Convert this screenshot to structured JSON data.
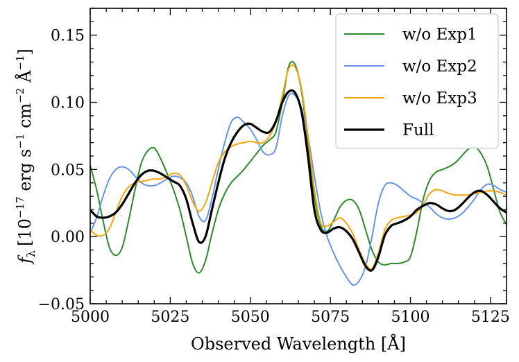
{
  "chart_data": {
    "type": "line",
    "title": "",
    "xlabel": "Observed Wavelength [Å]",
    "ylabel_main": "f",
    "ylabel_sub": "λ",
    "ylabel_units": "[10",
    "ylabel_exp1": "−17",
    "ylabel_erg": " erg s",
    "ylabel_exp2": "−1",
    "ylabel_cm": " cm",
    "ylabel_exp3": "−2",
    "ylabel_ang": " Å",
    "ylabel_exp4": "−1",
    "ylabel_close": "]",
    "xlim": [
      5000,
      5130
    ],
    "ylim": [
      -0.05,
      0.17
    ],
    "xticks": [
      5000,
      5025,
      5050,
      5075,
      5100,
      5125
    ],
    "xtick_labels": [
      "5000",
      "5025",
      "5050",
      "5075",
      "5100",
      "5125"
    ],
    "yticks": [
      -0.05,
      0.0,
      0.05,
      0.1,
      0.15
    ],
    "ytick_labels": [
      "−0.05",
      "0.00",
      "0.05",
      "0.10",
      "0.15"
    ],
    "legend_position": "top-right",
    "series": [
      {
        "name": "w/o Exp1",
        "color": "#2a8a2a",
        "width": 2,
        "x": [
          5000,
          5002,
          5004,
          5006,
          5008,
          5010,
          5012,
          5014,
          5016,
          5018,
          5020,
          5022,
          5024,
          5026,
          5028,
          5030,
          5032,
          5034,
          5036,
          5038,
          5040,
          5042,
          5044,
          5046,
          5048,
          5050,
          5052,
          5054,
          5056,
          5058,
          5060,
          5062,
          5064,
          5066,
          5068,
          5070,
          5072,
          5074,
          5076,
          5078,
          5080,
          5082,
          5084,
          5086,
          5088,
          5090,
          5092,
          5094,
          5096,
          5098,
          5100,
          5102,
          5104,
          5106,
          5108,
          5110,
          5112,
          5114,
          5116,
          5118,
          5120,
          5122,
          5124,
          5126,
          5128,
          5130
        ],
        "y": [
          0.053,
          0.035,
          0.012,
          -0.008,
          -0.014,
          -0.008,
          0.012,
          0.035,
          0.055,
          0.064,
          0.066,
          0.058,
          0.047,
          0.035,
          0.02,
          0.0,
          -0.02,
          -0.027,
          -0.018,
          0.002,
          0.02,
          0.032,
          0.04,
          0.045,
          0.05,
          0.056,
          0.062,
          0.068,
          0.072,
          0.078,
          0.1,
          0.127,
          0.128,
          0.108,
          0.07,
          0.03,
          0.008,
          0.004,
          0.012,
          0.022,
          0.027,
          0.027,
          0.02,
          0.005,
          -0.01,
          -0.019,
          -0.021,
          -0.02,
          -0.02,
          -0.019,
          -0.015,
          0.004,
          0.028,
          0.042,
          0.048,
          0.05,
          0.052,
          0.055,
          0.06,
          0.065,
          0.067,
          0.062,
          0.052,
          0.035,
          0.018,
          0.009
        ]
      },
      {
        "name": "w/o Exp2",
        "color": "#6495ed",
        "width": 2,
        "x": [
          5000,
          5002,
          5004,
          5006,
          5008,
          5010,
          5012,
          5014,
          5016,
          5018,
          5020,
          5022,
          5024,
          5026,
          5028,
          5030,
          5032,
          5034,
          5036,
          5038,
          5040,
          5042,
          5044,
          5046,
          5048,
          5050,
          5052,
          5054,
          5056,
          5058,
          5060,
          5062,
          5064,
          5066,
          5068,
          5070,
          5072,
          5074,
          5076,
          5078,
          5080,
          5082,
          5084,
          5086,
          5088,
          5090,
          5092,
          5094,
          5096,
          5098,
          5100,
          5102,
          5104,
          5106,
          5108,
          5110,
          5112,
          5114,
          5116,
          5118,
          5120,
          5122,
          5124,
          5126,
          5128,
          5130
        ],
        "y": [
          0.003,
          0.014,
          0.03,
          0.043,
          0.05,
          0.052,
          0.05,
          0.045,
          0.04,
          0.038,
          0.038,
          0.04,
          0.043,
          0.045,
          0.044,
          0.04,
          0.03,
          0.015,
          0.012,
          0.028,
          0.05,
          0.07,
          0.085,
          0.089,
          0.085,
          0.08,
          0.072,
          0.063,
          0.061,
          0.066,
          0.09,
          0.105,
          0.105,
          0.095,
          0.075,
          0.045,
          0.018,
          0.0,
          -0.012,
          -0.022,
          -0.03,
          -0.036,
          -0.033,
          -0.022,
          0.0,
          0.025,
          0.038,
          0.04,
          0.038,
          0.034,
          0.03,
          0.028,
          0.025,
          0.022,
          0.017,
          0.014,
          0.013,
          0.014,
          0.017,
          0.022,
          0.028,
          0.035,
          0.039,
          0.038,
          0.035,
          0.033
        ]
      },
      {
        "name": "w/o Exp3",
        "color": "#f5a40a",
        "width": 2,
        "x": [
          5000,
          5002,
          5004,
          5006,
          5008,
          5010,
          5012,
          5014,
          5016,
          5018,
          5020,
          5022,
          5024,
          5026,
          5028,
          5030,
          5032,
          5034,
          5036,
          5038,
          5040,
          5042,
          5044,
          5046,
          5048,
          5050,
          5052,
          5054,
          5056,
          5058,
          5060,
          5062,
          5064,
          5066,
          5068,
          5070,
          5072,
          5074,
          5076,
          5078,
          5080,
          5082,
          5084,
          5086,
          5088,
          5090,
          5092,
          5094,
          5096,
          5098,
          5100,
          5102,
          5104,
          5106,
          5108,
          5110,
          5112,
          5114,
          5116,
          5118,
          5120,
          5122,
          5124,
          5126,
          5128,
          5130
        ],
        "y": [
          0.005,
          0.001,
          0.001,
          0.006,
          0.018,
          0.03,
          0.037,
          0.04,
          0.041,
          0.042,
          0.043,
          0.043,
          0.045,
          0.047,
          0.046,
          0.038,
          0.026,
          0.019,
          0.025,
          0.04,
          0.055,
          0.063,
          0.067,
          0.069,
          0.07,
          0.071,
          0.07,
          0.07,
          0.075,
          0.085,
          0.105,
          0.125,
          0.126,
          0.11,
          0.075,
          0.035,
          0.01,
          0.008,
          0.011,
          0.014,
          0.01,
          0.002,
          -0.01,
          -0.02,
          -0.024,
          -0.012,
          0.005,
          0.012,
          0.014,
          0.015,
          0.016,
          0.018,
          0.024,
          0.032,
          0.035,
          0.034,
          0.032,
          0.031,
          0.031,
          0.031,
          0.032,
          0.033,
          0.034,
          0.034,
          0.033,
          0.031
        ]
      },
      {
        "name": "Full",
        "color": "#000000",
        "width": 3.2,
        "x": [
          5000,
          5002,
          5004,
          5006,
          5008,
          5010,
          5012,
          5014,
          5016,
          5018,
          5020,
          5022,
          5024,
          5026,
          5028,
          5030,
          5032,
          5034,
          5036,
          5038,
          5040,
          5042,
          5044,
          5046,
          5048,
          5050,
          5052,
          5054,
          5056,
          5058,
          5060,
          5062,
          5064,
          5066,
          5068,
          5070,
          5072,
          5074,
          5076,
          5078,
          5080,
          5082,
          5084,
          5086,
          5088,
          5090,
          5092,
          5094,
          5096,
          5098,
          5100,
          5102,
          5104,
          5106,
          5108,
          5110,
          5112,
          5114,
          5116,
          5118,
          5120,
          5122,
          5124,
          5126,
          5128,
          5130
        ],
        "y": [
          0.02,
          0.015,
          0.014,
          0.015,
          0.018,
          0.024,
          0.032,
          0.04,
          0.046,
          0.049,
          0.049,
          0.047,
          0.044,
          0.041,
          0.038,
          0.028,
          0.01,
          -0.004,
          0.0,
          0.02,
          0.04,
          0.058,
          0.07,
          0.078,
          0.083,
          0.084,
          0.081,
          0.078,
          0.078,
          0.086,
          0.1,
          0.108,
          0.107,
          0.093,
          0.06,
          0.02,
          0.005,
          0.003,
          0.006,
          0.007,
          0.004,
          -0.002,
          -0.012,
          -0.022,
          -0.025,
          -0.015,
          0.001,
          0.008,
          0.01,
          0.012,
          0.015,
          0.02,
          0.023,
          0.025,
          0.024,
          0.021,
          0.019,
          0.02,
          0.024,
          0.029,
          0.033,
          0.034,
          0.031,
          0.026,
          0.021,
          0.018
        ]
      }
    ]
  }
}
